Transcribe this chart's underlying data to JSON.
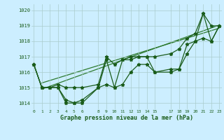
{
  "title": "Graphe pression niveau de la mer (hPa)",
  "background_color": "#cceeff",
  "grid_color": "#aacccc",
  "dark_green": "#1a5c1a",
  "mid_green": "#2d7a2d",
  "xlim": [
    -0.3,
    23.3
  ],
  "ylim": [
    1013.6,
    1020.4
  ],
  "yticks": [
    1014,
    1015,
    1016,
    1017,
    1018,
    1019,
    1020
  ],
  "xtick_positions": [
    0,
    1,
    2,
    3,
    4,
    5,
    6,
    8,
    9,
    10,
    11,
    12,
    13,
    14,
    15,
    17,
    18,
    19,
    20,
    21,
    22,
    23
  ],
  "xtick_labels": [
    "0",
    "1",
    "2",
    "3",
    "4",
    "5",
    "6",
    "8",
    "9",
    "10",
    "11",
    "12",
    "13",
    "14",
    "15",
    "17",
    "18",
    "19",
    "20",
    "21",
    "22",
    "23"
  ],
  "hours": [
    0,
    1,
    2,
    3,
    4,
    5,
    6,
    8,
    9,
    10,
    11,
    12,
    13,
    14,
    15,
    17,
    18,
    19,
    20,
    21,
    22,
    23
  ],
  "p_line1": [
    1016.5,
    1015.0,
    1015.0,
    1015.2,
    1015.0,
    1015.0,
    1015.0,
    1015.2,
    1017.0,
    1016.5,
    1016.8,
    1017.0,
    1017.0,
    1017.0,
    1017.0,
    1017.2,
    1017.5,
    1018.2,
    1018.5,
    1019.8,
    1019.0,
    1019.0
  ],
  "p_line2": [
    1016.5,
    1015.0,
    1015.0,
    1015.0,
    1014.2,
    1014.0,
    1014.2,
    1015.0,
    1016.8,
    1015.0,
    1016.8,
    1016.8,
    1017.0,
    1017.0,
    1016.0,
    1016.2,
    1016.2,
    1017.8,
    1018.0,
    1019.8,
    1018.0,
    1019.0
  ],
  "p_line3": [
    1016.5,
    1015.0,
    1015.0,
    1015.0,
    1014.0,
    1014.0,
    1014.0,
    1015.0,
    1015.2,
    1015.0,
    1015.2,
    1016.0,
    1016.5,
    1016.5,
    1016.0,
    1016.0,
    1016.2,
    1017.2,
    1018.0,
    1018.2,
    1018.0,
    1019.0
  ],
  "trend1_x": [
    1,
    23
  ],
  "trend1_y": [
    1014.9,
    1019.05
  ],
  "trend2_x": [
    1,
    23
  ],
  "trend2_y": [
    1015.3,
    1018.85
  ]
}
